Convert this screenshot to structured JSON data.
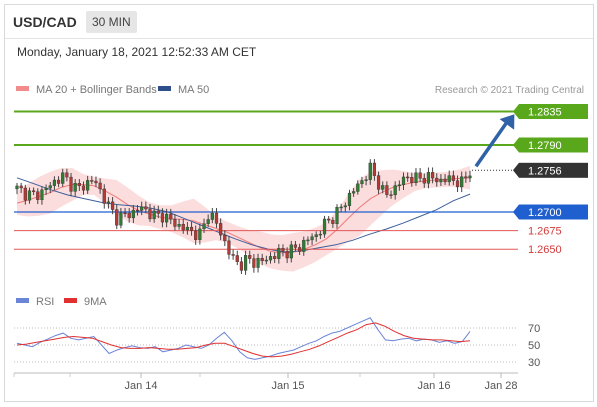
{
  "header": {
    "symbol": "USD/CAD",
    "timeframe": "30 MIN"
  },
  "datetime": "Monday, January 18, 2021 12:52:33 AM CET",
  "legend": {
    "ma20": "MA 20 + Bollinger Bands",
    "ma50": "MA 50",
    "credit": "Research © 2021 Trading Central"
  },
  "rsi_legend": {
    "rsi": "RSI",
    "ma9": "9MA"
  },
  "colors": {
    "resistance": "#59a81c",
    "support": "#1f5fcf",
    "support_minor": "#e35656",
    "current": "#333333",
    "candle_up": "#2f7d32",
    "candle_down": "#b43a36",
    "bollinger_fill": "#fbd7d7",
    "ma20": "#f07a7a",
    "ma50": "#3d5f9a",
    "rsi": "#6a84d8",
    "rsi_ma": "#e03030",
    "arrow": "#2f62a6"
  },
  "chart_data": {
    "type": "candlestick",
    "instrument": "USD/CAD",
    "x_ticks": [
      "Jan 14",
      "Jan 15",
      "Jan 16",
      "Jan 28"
    ],
    "levels": {
      "resistance": [
        1.2835,
        1.279
      ],
      "current": 1.2756,
      "support": [
        1.27,
        1.2675,
        1.265
      ]
    },
    "labels": [
      "1.2835",
      "1.2790",
      "1.2756",
      "1.2700",
      "1.2675",
      "1.2650"
    ],
    "price_path": [
      1.2731,
      1.2726,
      1.2722,
      1.2725,
      1.2733,
      1.2742,
      1.2748,
      1.2738,
      1.273,
      1.2739,
      1.2743,
      1.2726,
      1.2706,
      1.2692,
      1.2695,
      1.2699,
      1.2706,
      1.2701,
      1.2694,
      1.2696,
      1.2688,
      1.2682,
      1.2677,
      1.2672,
      1.267,
      1.2702,
      1.2683,
      1.2661,
      1.2638,
      1.2629,
      1.2636,
      1.2633,
      1.2634,
      1.2639,
      1.2645,
      1.2647,
      1.2649,
      1.2655,
      1.2664,
      1.2669,
      1.2683,
      1.2692,
      1.2702,
      1.2718,
      1.2731,
      1.2743,
      1.2758,
      1.2741,
      1.2721,
      1.273,
      1.2741,
      1.2748,
      1.2744,
      1.2747,
      1.2746,
      1.2742,
      1.2744,
      1.2743,
      1.2738,
      1.2756
    ],
    "ma20": [
      1.2712,
      1.2716,
      1.2721,
      1.2726,
      1.2733,
      1.2737,
      1.2737,
      1.2735,
      1.2728,
      1.272,
      1.271,
      1.2702,
      1.2697,
      1.2693,
      1.2691,
      1.269,
      1.2688,
      1.2683,
      1.2678,
      1.2673,
      1.2666,
      1.2659,
      1.2652,
      1.2647,
      1.2645,
      1.2646,
      1.265,
      1.2656,
      1.2664,
      1.2677,
      1.2692,
      1.2706,
      1.2718,
      1.2726,
      1.2733,
      1.2737,
      1.274,
      1.2742,
      1.2743,
      1.2744,
      1.2745,
      1.2746
    ],
    "ma50": [
      1.2746,
      1.2738,
      1.273,
      1.2723,
      1.2718,
      1.2713,
      1.271,
      1.2708,
      1.2705,
      1.27,
      1.2691,
      1.2682,
      1.2673,
      1.2664,
      1.2656,
      1.265,
      1.2646,
      1.2648,
      1.2652,
      1.2656,
      1.2662,
      1.267,
      1.2677,
      1.2685,
      1.2694,
      1.2703,
      1.2715,
      1.2724
    ],
    "bollinger_width": [
      0.0016,
      0.0022,
      0.0026,
      0.0028,
      0.0026,
      0.0022,
      0.0014,
      0.0012,
      0.0017,
      0.0023,
      0.0023,
      0.002,
      0.0016,
      0.0016,
      0.0018,
      0.0024,
      0.003,
      0.0024,
      0.0016,
      0.0014,
      0.0015,
      0.0017,
      0.0022,
      0.0023,
      0.0024,
      0.0026,
      0.0024,
      0.0023,
      0.0022,
      0.0026,
      0.0032,
      0.0038,
      0.0036,
      0.003,
      0.0024,
      0.0018,
      0.0012,
      0.001,
      0.001,
      0.001,
      0.0012,
      0.0016
    ],
    "projection": {
      "from": 1.2756,
      "to": 1.2835
    },
    "rsi": {
      "levels": [
        70,
        50,
        30
      ],
      "values": [
        52,
        50,
        48,
        53,
        57,
        61,
        64,
        58,
        56,
        58,
        60,
        50,
        40,
        44,
        47,
        49,
        47,
        46,
        48,
        42,
        44,
        46,
        50,
        48,
        46,
        50,
        58,
        65,
        55,
        42,
        35,
        33,
        35,
        37,
        40,
        42,
        44,
        48,
        52,
        55,
        60,
        64,
        66,
        70,
        74,
        78,
        82,
        68,
        56,
        55,
        57,
        58,
        55,
        57,
        56,
        53,
        55,
        52,
        54,
        66
      ],
      "ma9": [
        50,
        51,
        53,
        55,
        57,
        59,
        60,
        59,
        58,
        54,
        50,
        47,
        46,
        46,
        47,
        46,
        45,
        45,
        46,
        47,
        50,
        52,
        52,
        48,
        44,
        40,
        37,
        36,
        37,
        39,
        42,
        45,
        49,
        54,
        59,
        64,
        68,
        74,
        76,
        72,
        66,
        61,
        58,
        57,
        56,
        56,
        55,
        54,
        55
      ]
    }
  }
}
